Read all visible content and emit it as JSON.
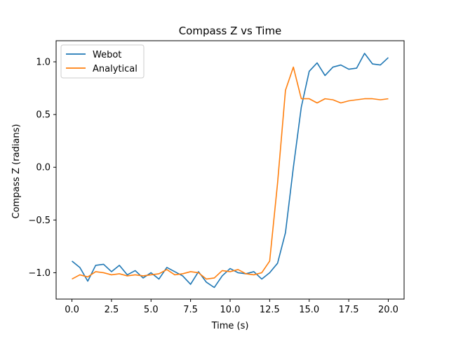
{
  "chart_data": {
    "type": "line",
    "title": "Compass Z vs Time",
    "xlabel": "Time (s)",
    "ylabel": "Compass Z (radians)",
    "xlim": [
      -1.0,
      21.0
    ],
    "ylim": [
      -1.25,
      1.2
    ],
    "xticks": [
      0.0,
      2.5,
      5.0,
      7.5,
      10.0,
      12.5,
      15.0,
      17.5,
      20.0
    ],
    "xtick_labels": [
      "0.0",
      "2.5",
      "5.0",
      "7.5",
      "10.0",
      "12.5",
      "15.0",
      "17.5",
      "20.0"
    ],
    "yticks": [
      1.0,
      0.5,
      0.0,
      -0.5,
      -1.0
    ],
    "ytick_labels": [
      "1.0",
      "0.5",
      "0.0",
      "−0.5",
      "−1.0"
    ],
    "grid": false,
    "legend_position": "top-left",
    "x": [
      0,
      0.5,
      1,
      1.5,
      2,
      2.5,
      3,
      3.5,
      4,
      4.5,
      5,
      5.5,
      6,
      6.5,
      7,
      7.5,
      8,
      8.5,
      9,
      9.5,
      10,
      10.5,
      11,
      11.5,
      12,
      12.5,
      13,
      13.5,
      14,
      14.5,
      15,
      15.5,
      16,
      16.5,
      17,
      17.5,
      18,
      18.5,
      19,
      19.5,
      20
    ],
    "series": [
      {
        "name": "Webot",
        "color": "#1f77b4",
        "values": [
          -0.89,
          -0.95,
          -1.08,
          -0.93,
          -0.92,
          -0.99,
          -0.93,
          -1.02,
          -0.98,
          -1.05,
          -1.0,
          -1.06,
          -0.95,
          -0.99,
          -1.03,
          -1.11,
          -0.99,
          -1.09,
          -1.14,
          -1.03,
          -0.96,
          -1.0,
          -1.01,
          -0.99,
          -1.06,
          -1.0,
          -0.91,
          -0.62,
          0.0,
          0.57,
          0.91,
          0.99,
          0.87,
          0.95,
          0.97,
          0.93,
          0.94,
          1.08,
          0.98,
          0.97,
          1.04
        ]
      },
      {
        "name": "Analytical",
        "color": "#ff7f0e",
        "values": [
          -1.06,
          -1.02,
          -1.04,
          -0.99,
          -1.0,
          -1.02,
          -1.01,
          -1.03,
          -1.02,
          -1.03,
          -1.02,
          -1.01,
          -0.97,
          -1.02,
          -1.01,
          -0.99,
          -1.0,
          -1.06,
          -1.05,
          -0.98,
          -0.99,
          -0.97,
          -1.01,
          -1.02,
          -1.0,
          -0.89,
          -0.15,
          0.73,
          0.95,
          0.65,
          0.65,
          0.61,
          0.65,
          0.64,
          0.61,
          0.63,
          0.64,
          0.65,
          0.65,
          0.64,
          0.65
        ]
      }
    ]
  }
}
